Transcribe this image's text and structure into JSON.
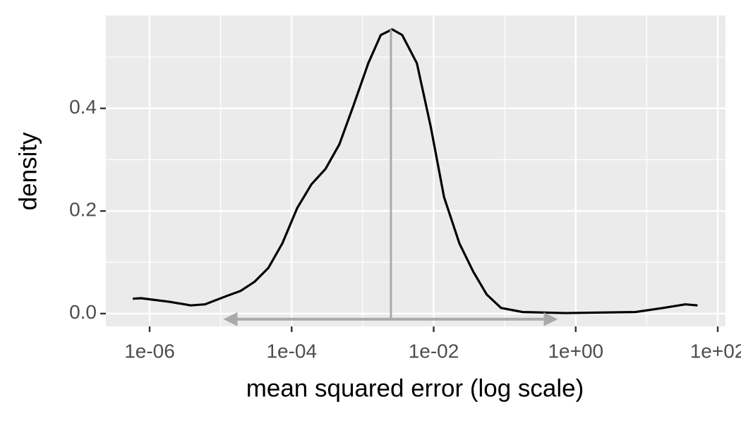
{
  "chart_data": {
    "type": "density",
    "x_label": "mean squared error (log scale)",
    "y_label": "density",
    "x": [
      5.8e-07,
      7.6e-07,
      1.9e-06,
      3.8e-06,
      6e-06,
      1.2e-05,
      1.9e-05,
      3e-05,
      4.7e-05,
      7.4e-05,
      0.00012,
      0.00019,
      0.0003,
      0.00047,
      0.00074,
      0.0012,
      0.0018,
      0.0026,
      0.0036,
      0.0058,
      0.0091,
      0.014,
      0.023,
      0.036,
      0.056,
      0.089,
      0.18,
      0.71,
      6.9,
      17,
      35,
      52
    ],
    "values": [
      0.029,
      0.03,
      0.023,
      0.016,
      0.018,
      0.034,
      0.044,
      0.062,
      0.089,
      0.137,
      0.206,
      0.252,
      0.282,
      0.33,
      0.405,
      0.488,
      0.543,
      0.554,
      0.543,
      0.488,
      0.364,
      0.227,
      0.137,
      0.082,
      0.037,
      0.011,
      0.003,
      0.001,
      0.003,
      0.011,
      0.018,
      0.016
    ],
    "color": "#000000",
    "log_x": true,
    "xlim": [
      2.42e-07,
      128.5
    ],
    "ylim": [
      -0.025,
      0.581
    ],
    "xticks": [
      {
        "value": 1e-06,
        "label": "1e-06"
      },
      {
        "value": 0.0001,
        "label": "1e-04"
      },
      {
        "value": 0.01,
        "label": "1e-02"
      },
      {
        "value": 1,
        "label": "1e+00"
      },
      {
        "value": 100,
        "label": "1e+02"
      }
    ],
    "yticks": [
      {
        "value": 0,
        "label": "0.0"
      },
      {
        "value": 0.2,
        "label": "0.2"
      },
      {
        "value": 0.4,
        "label": "0.4"
      }
    ],
    "xminor": [
      1e-05,
      0.001,
      0.1,
      10
    ],
    "yminor": [
      0.1,
      0.3,
      0.5
    ],
    "grid": true,
    "annotation_color": "#aaaaaa",
    "vline_x": 0.0025,
    "vline_top": 0.554,
    "range_arrow": [
      1.2e-05,
      0.51
    ],
    "range_arrow_y": -0.011
  }
}
